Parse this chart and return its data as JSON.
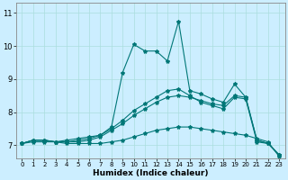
{
  "title": "",
  "xlabel": "Humidex (Indice chaleur)",
  "bg_color": "#cceeff",
  "grid_color": "#aadddd",
  "line_color": "#007777",
  "xlim": [
    -0.5,
    23.5
  ],
  "ylim": [
    6.6,
    11.3
  ],
  "yticks": [
    7,
    8,
    9,
    10,
    11
  ],
  "xticks": [
    0,
    1,
    2,
    3,
    4,
    5,
    6,
    7,
    8,
    9,
    10,
    11,
    12,
    13,
    14,
    15,
    16,
    17,
    18,
    19,
    20,
    21,
    22,
    23
  ],
  "series": [
    {
      "x": [
        0,
        1,
        2,
        3,
        4,
        5,
        6,
        7,
        8,
        9,
        10,
        11,
        12,
        13,
        14,
        15,
        16,
        17,
        18,
        19,
        20,
        21,
        22,
        23
      ],
      "y": [
        7.05,
        7.1,
        7.1,
        7.1,
        7.05,
        7.05,
        7.05,
        7.05,
        7.1,
        7.15,
        7.25,
        7.35,
        7.45,
        7.5,
        7.55,
        7.55,
        7.5,
        7.45,
        7.4,
        7.35,
        7.3,
        7.2,
        7.1,
        6.65
      ]
    },
    {
      "x": [
        0,
        1,
        2,
        3,
        4,
        5,
        6,
        7,
        8,
        9,
        10,
        11,
        12,
        13,
        14,
        15,
        16,
        17,
        18,
        19,
        20,
        21,
        22,
        23
      ],
      "y": [
        7.05,
        7.15,
        7.15,
        7.1,
        7.1,
        7.1,
        7.15,
        7.25,
        7.45,
        7.65,
        7.9,
        8.1,
        8.3,
        8.45,
        8.5,
        8.45,
        8.35,
        8.25,
        8.2,
        8.5,
        8.45,
        7.15,
        7.05,
        6.7
      ]
    },
    {
      "x": [
        0,
        1,
        2,
        3,
        4,
        5,
        6,
        7,
        8,
        9,
        10,
        11,
        12,
        13,
        14,
        15,
        16,
        17,
        18,
        19,
        20,
        21,
        22,
        23
      ],
      "y": [
        7.05,
        7.15,
        7.15,
        7.1,
        7.15,
        7.2,
        7.25,
        7.3,
        7.5,
        7.75,
        8.05,
        8.25,
        8.45,
        8.65,
        8.7,
        8.5,
        8.3,
        8.2,
        8.1,
        8.45,
        8.4,
        7.1,
        7.05,
        6.7
      ]
    },
    {
      "x": [
        0,
        1,
        2,
        3,
        4,
        5,
        6,
        7,
        8,
        9,
        10,
        11,
        12,
        13,
        14,
        15,
        16,
        17,
        18,
        19,
        20,
        21,
        22,
        23
      ],
      "y": [
        7.05,
        7.15,
        7.15,
        7.1,
        7.1,
        7.15,
        7.2,
        7.3,
        7.55,
        9.2,
        10.05,
        9.85,
        9.85,
        9.55,
        10.75,
        8.65,
        8.55,
        8.4,
        8.3,
        8.85,
        8.45,
        7.15,
        7.05,
        6.7
      ]
    }
  ]
}
